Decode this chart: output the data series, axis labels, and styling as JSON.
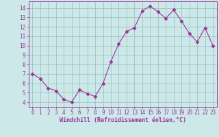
{
  "x": [
    0,
    1,
    2,
    3,
    4,
    5,
    6,
    7,
    8,
    9,
    10,
    11,
    12,
    13,
    14,
    15,
    16,
    17,
    18,
    19,
    20,
    21,
    22,
    23
  ],
  "y": [
    7.0,
    6.5,
    5.5,
    5.2,
    4.3,
    4.0,
    5.3,
    4.9,
    4.6,
    6.0,
    8.3,
    10.2,
    11.5,
    11.9,
    13.7,
    14.2,
    13.6,
    12.9,
    13.8,
    12.6,
    11.3,
    10.4,
    11.9,
    10.0
  ],
  "line_color": "#993399",
  "marker": "D",
  "marker_size": 2.5,
  "background_color": "#cce8e8",
  "grid_color": "#99bbbb",
  "xlabel": "Windchill (Refroidissement éolien,°C)",
  "xlabel_color": "#993399",
  "tick_color": "#993399",
  "spine_color": "#993399",
  "ylim": [
    3.5,
    14.7
  ],
  "xlim": [
    -0.5,
    23.5
  ],
  "yticks": [
    4,
    5,
    6,
    7,
    8,
    9,
    10,
    11,
    12,
    13,
    14
  ],
  "xticks": [
    0,
    1,
    2,
    3,
    4,
    5,
    6,
    7,
    8,
    9,
    10,
    11,
    12,
    13,
    14,
    15,
    16,
    17,
    18,
    19,
    20,
    21,
    22,
    23
  ],
  "tick_fontsize": 5.5,
  "xlabel_fontsize": 6.0
}
